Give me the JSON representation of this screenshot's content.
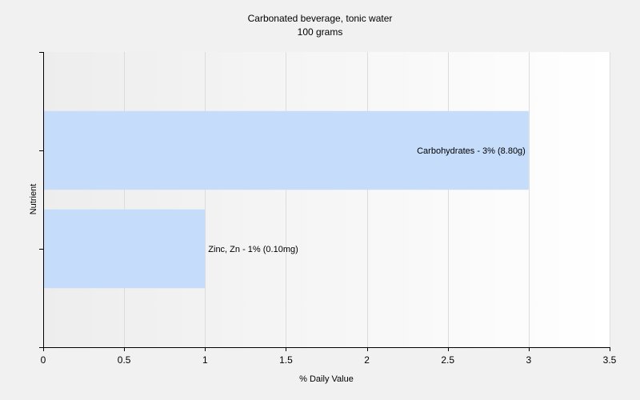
{
  "chart_data": {
    "type": "bar",
    "orientation": "horizontal",
    "title": "Carbonated beverage, tonic water",
    "subtitle": "100 grams",
    "xlabel": "% Daily Value",
    "ylabel": "Nutrient",
    "xlim": [
      0,
      3.5
    ],
    "xticks": [
      "0",
      "0.5",
      "1",
      "1.5",
      "2",
      "2.5",
      "3",
      "3.5"
    ],
    "grid": true,
    "bar_color": "#c5ddfb",
    "bars": [
      {
        "category": "Carbohydrates",
        "value": 3,
        "label": "Carbohydrates - 3% (8.80g)"
      },
      {
        "category": "Zinc, Zn",
        "value": 1,
        "label": "Zinc, Zn - 1% (0.10mg)"
      }
    ]
  }
}
